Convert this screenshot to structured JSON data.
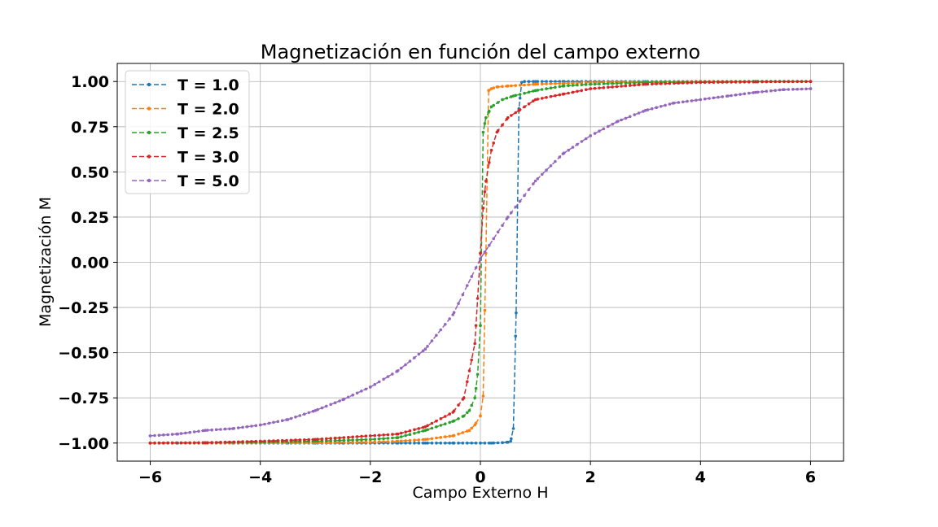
{
  "chart_data": {
    "type": "line",
    "title": "Magnetización en función del campo externo",
    "xlabel": "Campo Externo H",
    "ylabel": "Magnetización M",
    "xlim": [
      -6.6,
      6.6
    ],
    "ylim": [
      -1.1,
      1.1
    ],
    "xticks": [
      -6,
      -4,
      -2,
      0,
      2,
      4,
      6
    ],
    "xtick_labels": [
      "−6",
      "−4",
      "−2",
      "0",
      "2",
      "4",
      "6"
    ],
    "yticks": [
      -1.0,
      -0.75,
      -0.5,
      -0.25,
      0.0,
      0.25,
      0.5,
      0.75,
      1.0
    ],
    "ytick_labels": [
      "−1.00",
      "−0.75",
      "−0.50",
      "−0.25",
      "0.00",
      "0.25",
      "0.50",
      "0.75",
      "1.00"
    ],
    "grid": true,
    "legend_position": "top-left",
    "series": [
      {
        "name": "T = 1.0",
        "color": "#1f77b4",
        "x": [
          -6,
          -5.5,
          -5,
          -4.5,
          -4,
          -3.5,
          -3,
          -2.5,
          -2,
          -1.5,
          -1,
          -0.5,
          0,
          0.2,
          0.4,
          0.5,
          0.55,
          0.6,
          0.65,
          0.7,
          0.75,
          0.8,
          1,
          1.5,
          2,
          3,
          4,
          5,
          6
        ],
        "y": [
          -1.0,
          -1.0,
          -1.0,
          -1.0,
          -1.0,
          -1.0,
          -1.0,
          -1.0,
          -1.0,
          -1.0,
          -1.0,
          -1.0,
          -1.0,
          -1.0,
          -0.998,
          -0.995,
          -0.99,
          -0.92,
          -0.28,
          0.85,
          0.995,
          1.0,
          1.0,
          1.0,
          1.0,
          1.0,
          1.0,
          1.0,
          1.0
        ]
      },
      {
        "name": "T = 2.0",
        "color": "#ff7f0e",
        "x": [
          -6,
          -5,
          -4,
          -3,
          -2,
          -1.5,
          -1,
          -0.5,
          -0.2,
          -0.1,
          0,
          0.05,
          0.1,
          0.15,
          0.2,
          0.3,
          0.5,
          1,
          1.5,
          2,
          3,
          4,
          5,
          6
        ],
        "y": [
          -1.0,
          -1.0,
          -0.999,
          -0.998,
          -0.995,
          -0.99,
          -0.98,
          -0.96,
          -0.93,
          -0.9,
          -0.85,
          -0.74,
          0.05,
          0.95,
          0.96,
          0.97,
          0.975,
          0.985,
          0.99,
          0.995,
          0.998,
          1.0,
          1.0,
          1.0
        ]
      },
      {
        "name": "T = 2.5",
        "color": "#2ca02c",
        "x": [
          -6,
          -5,
          -4,
          -3,
          -2,
          -1.5,
          -1,
          -0.5,
          -0.3,
          -0.2,
          -0.1,
          -0.05,
          0,
          0.05,
          0.1,
          0.15,
          0.2,
          0.4,
          0.6,
          1,
          1.5,
          2,
          3,
          4,
          5,
          6
        ],
        "y": [
          -1.0,
          -0.998,
          -0.995,
          -0.99,
          -0.98,
          -0.97,
          -0.93,
          -0.88,
          -0.85,
          -0.82,
          -0.75,
          -0.62,
          -0.35,
          0.72,
          0.8,
          0.83,
          0.86,
          0.9,
          0.92,
          0.95,
          0.975,
          0.985,
          0.995,
          0.998,
          1.0,
          1.0
        ]
      },
      {
        "name": "T = 3.0",
        "color": "#d62728",
        "x": [
          -6,
          -5,
          -4,
          -3,
          -2,
          -1.5,
          -1,
          -0.5,
          -0.3,
          -0.2,
          -0.1,
          -0.05,
          0,
          0.05,
          0.1,
          0.2,
          0.3,
          0.5,
          0.7,
          1,
          1.5,
          2,
          3,
          4,
          5,
          6
        ],
        "y": [
          -1.0,
          -0.998,
          -0.99,
          -0.98,
          -0.96,
          -0.95,
          -0.91,
          -0.83,
          -0.75,
          -0.6,
          -0.45,
          -0.2,
          0.05,
          0.3,
          0.45,
          0.62,
          0.72,
          0.8,
          0.84,
          0.9,
          0.93,
          0.96,
          0.985,
          0.995,
          0.998,
          1.0
        ]
      },
      {
        "name": "T = 5.0",
        "color": "#9467bd",
        "x": [
          -6,
          -5.5,
          -5,
          -4.5,
          -4,
          -3.5,
          -3,
          -2.5,
          -2,
          -1.5,
          -1,
          -0.5,
          0,
          0.5,
          1,
          1.5,
          2,
          2.5,
          3,
          3.5,
          4,
          4.5,
          5,
          5.5,
          6
        ],
        "y": [
          -0.96,
          -0.95,
          -0.93,
          -0.92,
          -0.9,
          -0.87,
          -0.82,
          -0.76,
          -0.69,
          -0.6,
          -0.48,
          -0.29,
          0.02,
          0.25,
          0.45,
          0.6,
          0.7,
          0.78,
          0.84,
          0.88,
          0.9,
          0.92,
          0.94,
          0.955,
          0.96
        ]
      }
    ]
  }
}
